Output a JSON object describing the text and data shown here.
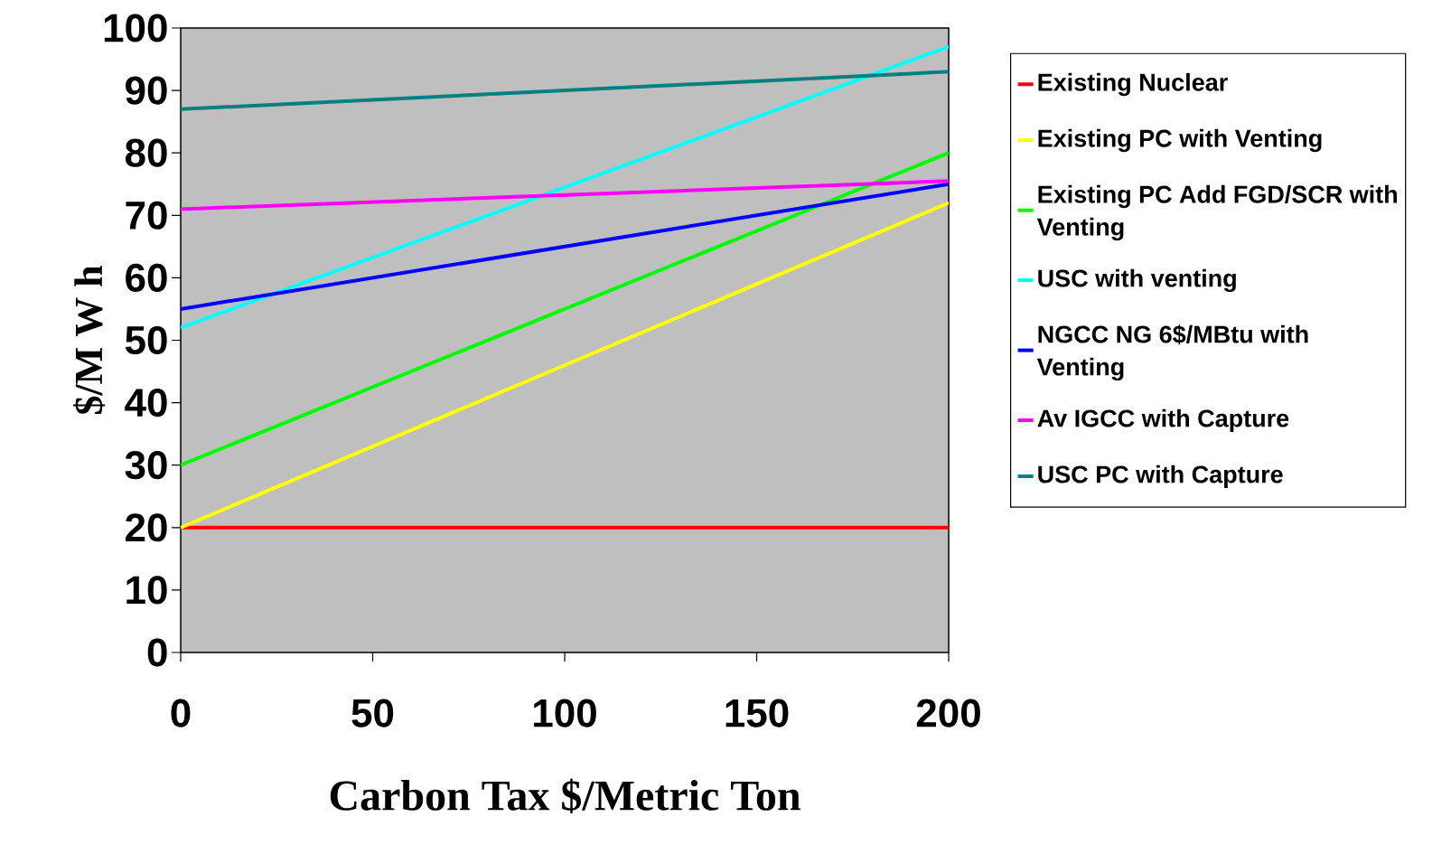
{
  "chart_data": {
    "type": "line",
    "xlabel": "Carbon Tax $/Metric Ton",
    "ylabel": "$/M W h",
    "x": [
      0,
      200
    ],
    "xlim": [
      0,
      200
    ],
    "xticks": [
      0,
      50,
      100,
      150,
      200
    ],
    "ylim": [
      0,
      100
    ],
    "yticks": [
      0,
      10,
      20,
      30,
      40,
      50,
      60,
      70,
      80,
      90,
      100
    ],
    "legend": "right",
    "marker": "none",
    "line_style": "solid",
    "series": [
      {
        "name": "Existing Nuclear",
        "color": "#ff0000",
        "values": [
          20,
          20
        ]
      },
      {
        "name": "Existing PC with Venting",
        "color": "#ffff00",
        "values": [
          20,
          72
        ]
      },
      {
        "name": "Existing PC Add FGD/SCR with Venting",
        "color": "#00ff00",
        "values": [
          30,
          80
        ]
      },
      {
        "name": "USC with venting",
        "color": "#00ffff",
        "values": [
          52,
          97
        ]
      },
      {
        "name": "NGCC NG 6$/MBtu with Venting",
        "color": "#0000ff",
        "values": [
          55,
          75
        ]
      },
      {
        "name": "Av IGCC with Capture",
        "color": "#ff00ff",
        "values": [
          71,
          75.5
        ]
      },
      {
        "name": "USC PC with Capture",
        "color": "#008080",
        "values": [
          87,
          93
        ]
      }
    ]
  }
}
